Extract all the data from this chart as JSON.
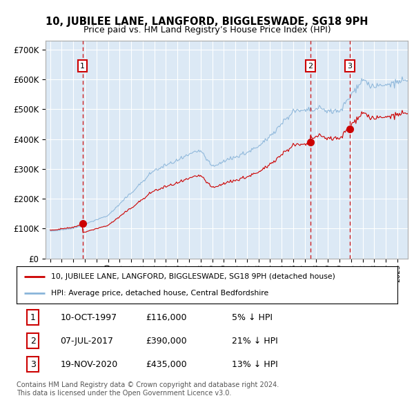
{
  "title": "10, JUBILEE LANE, LANGFORD, BIGGLESWADE, SG18 9PH",
  "subtitle": "Price paid vs. HM Land Registry’s House Price Index (HPI)",
  "ylim": [
    0,
    730000
  ],
  "yticks": [
    0,
    100000,
    200000,
    300000,
    400000,
    500000,
    600000,
    700000
  ],
  "ytick_labels": [
    "£0",
    "£100K",
    "£200K",
    "£300K",
    "£400K",
    "£500K",
    "£600K",
    "£700K"
  ],
  "background_color": "#dce9f5",
  "grid_color": "#ffffff",
  "sale_times": [
    1997.792,
    2017.5,
    2020.875
  ],
  "sale_prices": [
    116000,
    390000,
    435000
  ],
  "sale_labels": [
    "1",
    "2",
    "3"
  ],
  "legend_line1": "10, JUBILEE LANE, LANGFORD, BIGGLESWADE, SG18 9PH (detached house)",
  "legend_line2": "HPI: Average price, detached house, Central Bedfordshire",
  "table_data": [
    [
      "1",
      "10-OCT-1997",
      "£116,000",
      "5% ↓ HPI"
    ],
    [
      "2",
      "07-JUL-2017",
      "£390,000",
      "21% ↓ HPI"
    ],
    [
      "3",
      "19-NOV-2020",
      "£435,000",
      "13% ↓ HPI"
    ]
  ],
  "footnote1": "Contains HM Land Registry data © Crown copyright and database right 2024.",
  "footnote2": "This data is licensed under the Open Government Licence v3.0.",
  "red_color": "#cc0000",
  "blue_color": "#89b4d9"
}
